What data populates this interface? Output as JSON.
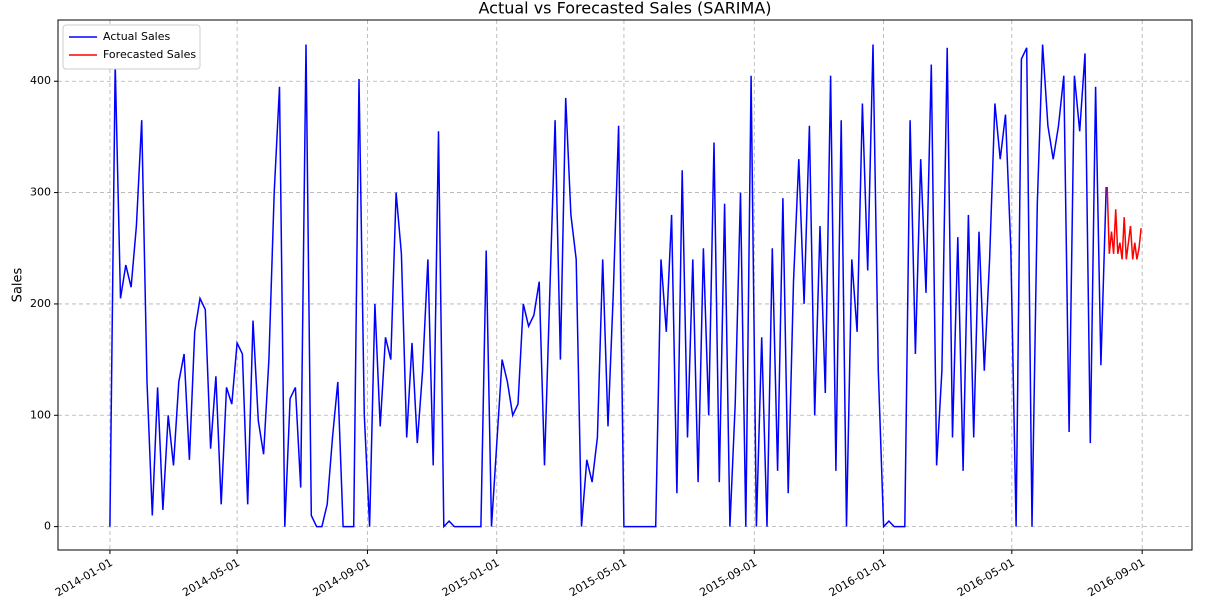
{
  "chart_data": {
    "type": "line",
    "title": "Actual vs Forecasted Sales (SARIMA)",
    "y_label": "Sales",
    "xlim": [
      "2013-11-13",
      "2016-10-18"
    ],
    "ylim": [
      -21,
      455
    ],
    "xticks": [
      "2014-01-01",
      "2014-05-01",
      "2014-09-01",
      "2015-01-01",
      "2015-05-01",
      "2015-09-01",
      "2016-01-01",
      "2016-05-01",
      "2016-09-01"
    ],
    "yticks": [
      0,
      100,
      200,
      300,
      400
    ],
    "grid": true,
    "legend": "upper left",
    "series": [
      {
        "name": "Actual Sales",
        "color": "#0000ff",
        "x": [
          "2014-01-01",
          "2014-01-06",
          "2014-01-11",
          "2014-01-16",
          "2014-01-21",
          "2014-01-26",
          "2014-01-31",
          "2014-02-05",
          "2014-02-10",
          "2014-02-15",
          "2014-02-20",
          "2014-02-25",
          "2014-03-02",
          "2014-03-07",
          "2014-03-12",
          "2014-03-17",
          "2014-03-22",
          "2014-03-27",
          "2014-04-01",
          "2014-04-06",
          "2014-04-11",
          "2014-04-16",
          "2014-04-21",
          "2014-04-26",
          "2014-05-01",
          "2014-05-06",
          "2014-05-11",
          "2014-05-16",
          "2014-05-21",
          "2014-05-26",
          "2014-05-31",
          "2014-06-05",
          "2014-06-10",
          "2014-06-15",
          "2014-06-20",
          "2014-06-25",
          "2014-06-30",
          "2014-07-05",
          "2014-07-10",
          "2014-07-15",
          "2014-07-20",
          "2014-07-25",
          "2014-07-30",
          "2014-08-04",
          "2014-08-09",
          "2014-08-14",
          "2014-08-19",
          "2014-08-24",
          "2014-08-29",
          "2014-09-03",
          "2014-09-08",
          "2014-09-13",
          "2014-09-18",
          "2014-09-23",
          "2014-09-28",
          "2014-10-03",
          "2014-10-08",
          "2014-10-13",
          "2014-10-18",
          "2014-10-23",
          "2014-10-28",
          "2014-11-02",
          "2014-11-07",
          "2014-11-12",
          "2014-11-17",
          "2014-11-22",
          "2014-11-27",
          "2014-12-02",
          "2014-12-07",
          "2014-12-12",
          "2014-12-17",
          "2014-12-22",
          "2014-12-27",
          "2015-01-01",
          "2015-01-06",
          "2015-01-11",
          "2015-01-16",
          "2015-01-21",
          "2015-01-26",
          "2015-01-31",
          "2015-02-05",
          "2015-02-10",
          "2015-02-15",
          "2015-02-20",
          "2015-02-25",
          "2015-03-02",
          "2015-03-07",
          "2015-03-12",
          "2015-03-17",
          "2015-03-22",
          "2015-03-27",
          "2015-04-01",
          "2015-04-06",
          "2015-04-11",
          "2015-04-16",
          "2015-04-21",
          "2015-04-26",
          "2015-05-01",
          "2015-05-06",
          "2015-05-11",
          "2015-05-16",
          "2015-05-21",
          "2015-05-26",
          "2015-05-31",
          "2015-06-05",
          "2015-06-10",
          "2015-06-15",
          "2015-06-20",
          "2015-06-25",
          "2015-06-30",
          "2015-07-05",
          "2015-07-10",
          "2015-07-15",
          "2015-07-20",
          "2015-07-25",
          "2015-07-30",
          "2015-08-04",
          "2015-08-09",
          "2015-08-14",
          "2015-08-19",
          "2015-08-24",
          "2015-08-29",
          "2015-09-03",
          "2015-09-08",
          "2015-09-13",
          "2015-09-18",
          "2015-09-23",
          "2015-09-28",
          "2015-10-03",
          "2015-10-08",
          "2015-10-13",
          "2015-10-18",
          "2015-10-23",
          "2015-10-28",
          "2015-11-02",
          "2015-11-07",
          "2015-11-12",
          "2015-11-17",
          "2015-11-22",
          "2015-11-27",
          "2015-12-02",
          "2015-12-07",
          "2015-12-12",
          "2015-12-17",
          "2015-12-22",
          "2015-12-27",
          "2016-01-01",
          "2016-01-06",
          "2016-01-11",
          "2016-01-16",
          "2016-01-21",
          "2016-01-26",
          "2016-01-31",
          "2016-02-05",
          "2016-02-10",
          "2016-02-15",
          "2016-02-20",
          "2016-02-25",
          "2016-03-01",
          "2016-03-06",
          "2016-03-11",
          "2016-03-16",
          "2016-03-21",
          "2016-03-26",
          "2016-03-31",
          "2016-04-05",
          "2016-04-10",
          "2016-04-15",
          "2016-04-20",
          "2016-04-25",
          "2016-04-30",
          "2016-05-05",
          "2016-05-10",
          "2016-05-15",
          "2016-05-20",
          "2016-05-25",
          "2016-05-30",
          "2016-06-04",
          "2016-06-09",
          "2016-06-14",
          "2016-06-19",
          "2016-06-24",
          "2016-06-29",
          "2016-07-04",
          "2016-07-09",
          "2016-07-14",
          "2016-07-19",
          "2016-07-24",
          "2016-07-29"
        ],
        "values": [
          0,
          415,
          205,
          235,
          215,
          270,
          365,
          130,
          10,
          125,
          15,
          100,
          55,
          130,
          155,
          60,
          175,
          205,
          195,
          70,
          135,
          20,
          125,
          110,
          165,
          155,
          20,
          185,
          95,
          65,
          150,
          300,
          395,
          0,
          115,
          125,
          35,
          433,
          10,
          0,
          0,
          20,
          80,
          130,
          0,
          0,
          0,
          402,
          100,
          0,
          200,
          90,
          170,
          150,
          300,
          245,
          80,
          165,
          75,
          140,
          240,
          55,
          355,
          0,
          5,
          0,
          0,
          0,
          0,
          0,
          0,
          248,
          0,
          75,
          150,
          130,
          100,
          110,
          200,
          180,
          190,
          220,
          55,
          210,
          365,
          150,
          385,
          280,
          240,
          0,
          60,
          40,
          80,
          240,
          90,
          210,
          360,
          0,
          0,
          0,
          0,
          0,
          0,
          0,
          240,
          175,
          280,
          30,
          320,
          80,
          240,
          40,
          250,
          100,
          345,
          40,
          290,
          0,
          110,
          300,
          0,
          405,
          0,
          170,
          0,
          250,
          50,
          295,
          30,
          220,
          330,
          200,
          360,
          100,
          270,
          120,
          405,
          50,
          365,
          0,
          240,
          175,
          380,
          230,
          433,
          140,
          0,
          5,
          0,
          0,
          0,
          365,
          155,
          330,
          210,
          415,
          55,
          140,
          430,
          80,
          260,
          50,
          280,
          80,
          265,
          140,
          240,
          380,
          330,
          370,
          250,
          0,
          420,
          430,
          0,
          290,
          433,
          360,
          330,
          360,
          405,
          85,
          405,
          355,
          425,
          75,
          395,
          145,
          305
        ]
      },
      {
        "name": "Forecasted Sales",
        "color": "#ff0000",
        "x": [
          "2016-07-30",
          "2016-08-01",
          "2016-08-03",
          "2016-08-05",
          "2016-08-07",
          "2016-08-09",
          "2016-08-11",
          "2016-08-13",
          "2016-08-15",
          "2016-08-17",
          "2016-08-19",
          "2016-08-21",
          "2016-08-23",
          "2016-08-25",
          "2016-08-27",
          "2016-08-29",
          "2016-08-31"
        ],
        "values": [
          305,
          245,
          265,
          245,
          285,
          245,
          255,
          240,
          278,
          240,
          255,
          270,
          240,
          255,
          240,
          250,
          268
        ]
      }
    ]
  }
}
